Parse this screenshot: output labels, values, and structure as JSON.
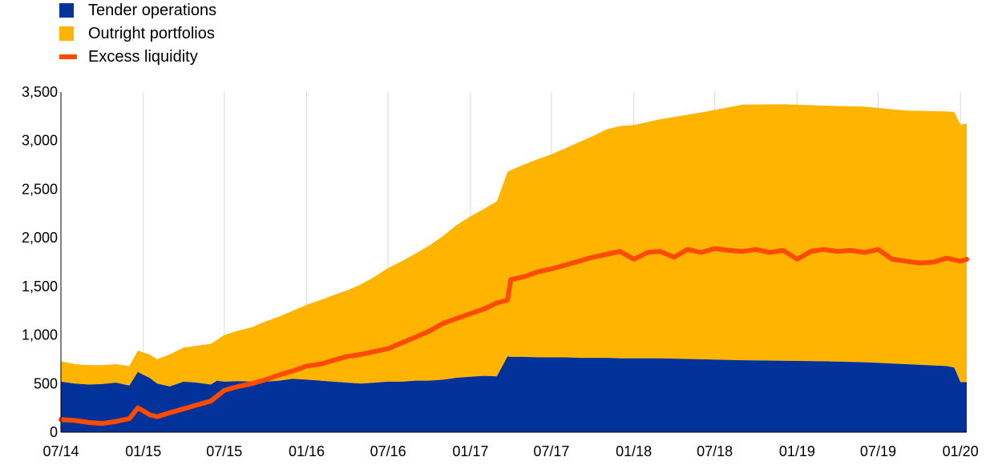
{
  "colors": {
    "tender": "#003299",
    "outright": "#ffb400",
    "excess": "#ff4b00",
    "grid": "#d9d9d9"
  },
  "chart_data": {
    "type": "area",
    "series": [
      {
        "name": "Tender operations",
        "kind": "stacked-area",
        "color": "#003299",
        "x": [
          "2014-07-01",
          "2014-08-01",
          "2014-09-01",
          "2014-10-01",
          "2014-11-01",
          "2014-12-01",
          "2014-12-20",
          "2015-01-01",
          "2015-01-15",
          "2015-02-01",
          "2015-03-01",
          "2015-04-01",
          "2015-05-01",
          "2015-06-01",
          "2015-06-15",
          "2015-07-01",
          "2015-08-01",
          "2015-09-01",
          "2015-10-01",
          "2015-11-01",
          "2015-12-01",
          "2016-01-01",
          "2016-02-01",
          "2016-03-01",
          "2016-04-01",
          "2016-05-01",
          "2016-06-01",
          "2016-07-01",
          "2016-08-01",
          "2016-09-01",
          "2016-10-01",
          "2016-11-01",
          "2016-12-01",
          "2017-01-01",
          "2017-02-01",
          "2017-03-01",
          "2017-03-25",
          "2017-04-01",
          "2017-05-01",
          "2017-06-01",
          "2017-07-01",
          "2017-08-01",
          "2017-09-01",
          "2017-10-01",
          "2017-11-01",
          "2017-12-01",
          "2018-01-01",
          "2018-03-01",
          "2018-06-01",
          "2018-09-01",
          "2018-12-01",
          "2019-03-01",
          "2019-06-01",
          "2019-09-01",
          "2019-12-01",
          "2019-12-18",
          "2020-01-01",
          "2020-01-15"
        ],
        "y": [
          520,
          500,
          490,
          495,
          510,
          480,
          620,
          590,
          560,
          500,
          470,
          520,
          510,
          490,
          530,
          520,
          525,
          520,
          520,
          530,
          550,
          540,
          530,
          520,
          510,
          500,
          510,
          520,
          520,
          530,
          530,
          540,
          560,
          570,
          580,
          575,
          780,
          775,
          775,
          770,
          770,
          770,
          765,
          765,
          765,
          760,
          760,
          760,
          750,
          740,
          735,
          730,
          720,
          700,
          680,
          665,
          515,
          515
        ]
      },
      {
        "name": "Outright portfolios",
        "kind": "stacked-area",
        "color": "#ffb400",
        "x": [
          "2014-07-01",
          "2014-08-01",
          "2014-09-01",
          "2014-10-01",
          "2014-11-01",
          "2014-12-01",
          "2014-12-20",
          "2015-01-01",
          "2015-01-15",
          "2015-02-01",
          "2015-03-01",
          "2015-04-01",
          "2015-05-01",
          "2015-06-01",
          "2015-06-15",
          "2015-07-01",
          "2015-08-01",
          "2015-09-01",
          "2015-10-01",
          "2015-11-01",
          "2015-12-01",
          "2016-01-01",
          "2016-02-01",
          "2016-03-01",
          "2016-04-01",
          "2016-05-01",
          "2016-06-01",
          "2016-07-01",
          "2016-08-01",
          "2016-09-01",
          "2016-10-01",
          "2016-11-01",
          "2016-12-01",
          "2017-01-01",
          "2017-02-01",
          "2017-03-01",
          "2017-03-25",
          "2017-04-01",
          "2017-05-01",
          "2017-06-01",
          "2017-07-01",
          "2017-08-01",
          "2017-09-01",
          "2017-10-01",
          "2017-11-01",
          "2017-12-01",
          "2018-01-01",
          "2018-03-01",
          "2018-06-01",
          "2018-09-01",
          "2018-12-01",
          "2019-03-01",
          "2019-06-01",
          "2019-09-01",
          "2019-12-01",
          "2019-12-18",
          "2020-01-01",
          "2020-01-15"
        ],
        "y": [
          210,
          200,
          200,
          195,
          190,
          200,
          220,
          230,
          240,
          250,
          330,
          350,
          380,
          420,
          420,
          480,
          520,
          560,
          620,
          660,
          700,
          770,
          830,
          890,
          950,
          1020,
          1090,
          1170,
          1240,
          1310,
          1390,
          1480,
          1570,
          1650,
          1720,
          1800,
          1900,
          1920,
          1980,
          2040,
          2090,
          2150,
          2220,
          2280,
          2350,
          2390,
          2400,
          2460,
          2540,
          2630,
          2640,
          2630,
          2630,
          2610,
          2620,
          2630,
          2650,
          2660
        ]
      },
      {
        "name": "Excess liquidity",
        "kind": "line",
        "color": "#ff4b00",
        "x": [
          "2014-07-01",
          "2014-08-01",
          "2014-09-01",
          "2014-10-01",
          "2014-11-01",
          "2014-12-01",
          "2014-12-20",
          "2015-01-01",
          "2015-01-15",
          "2015-02-01",
          "2015-03-01",
          "2015-04-01",
          "2015-05-01",
          "2015-06-01",
          "2015-07-01",
          "2015-08-01",
          "2015-09-01",
          "2015-10-01",
          "2015-11-01",
          "2015-12-01",
          "2016-01-01",
          "2016-02-01",
          "2016-03-01",
          "2016-04-01",
          "2016-05-01",
          "2016-06-01",
          "2016-07-01",
          "2016-08-01",
          "2016-09-01",
          "2016-10-01",
          "2016-11-01",
          "2016-12-01",
          "2017-01-01",
          "2017-02-01",
          "2017-03-01",
          "2017-03-25",
          "2017-04-01",
          "2017-05-01",
          "2017-06-01",
          "2017-07-01",
          "2017-08-01",
          "2017-09-01",
          "2017-10-01",
          "2017-11-01",
          "2017-12-01",
          "2018-01-01",
          "2018-02-01",
          "2018-03-01",
          "2018-04-01",
          "2018-05-01",
          "2018-06-01",
          "2018-07-01",
          "2018-08-01",
          "2018-09-01",
          "2018-10-01",
          "2018-11-01",
          "2018-12-01",
          "2019-01-01",
          "2019-02-01",
          "2019-03-01",
          "2019-04-01",
          "2019-05-01",
          "2019-06-01",
          "2019-07-01",
          "2019-08-01",
          "2019-09-01",
          "2019-10-01",
          "2019-11-01",
          "2019-12-01",
          "2020-01-01",
          "2020-01-15"
        ],
        "y": [
          130,
          120,
          100,
          90,
          110,
          140,
          250,
          220,
          180,
          160,
          200,
          240,
          280,
          320,
          430,
          470,
          500,
          540,
          590,
          630,
          680,
          700,
          740,
          780,
          800,
          830,
          860,
          920,
          980,
          1040,
          1120,
          1170,
          1220,
          1270,
          1330,
          1360,
          1570,
          1600,
          1650,
          1680,
          1720,
          1760,
          1800,
          1830,
          1860,
          1780,
          1850,
          1860,
          1800,
          1880,
          1850,
          1890,
          1870,
          1860,
          1880,
          1850,
          1870,
          1780,
          1860,
          1880,
          1860,
          1870,
          1850,
          1880,
          1780,
          1760,
          1740,
          1750,
          1790,
          1760,
          1780
        ]
      }
    ],
    "xlabel": "",
    "ylabel": "",
    "x_ticks": [
      "07/14",
      "01/15",
      "07/15",
      "01/16",
      "07/16",
      "01/17",
      "07/17",
      "01/18",
      "07/18",
      "01/19",
      "07/19",
      "01/20"
    ],
    "x_tick_dates": [
      "2014-07-01",
      "2015-01-01",
      "2015-07-01",
      "2016-01-01",
      "2016-07-01",
      "2017-01-01",
      "2017-07-01",
      "2018-01-01",
      "2018-07-01",
      "2019-01-01",
      "2019-07-01",
      "2020-01-01"
    ],
    "y_ticks": [
      "0",
      "500",
      "1,000",
      "1,500",
      "2,000",
      "2,500",
      "3,000",
      "3,500"
    ],
    "ylim": [
      0,
      3500
    ],
    "xlim": [
      "2014-07-01",
      "2020-01-15"
    ],
    "grid": "vertical",
    "legend_position": "top-left"
  }
}
